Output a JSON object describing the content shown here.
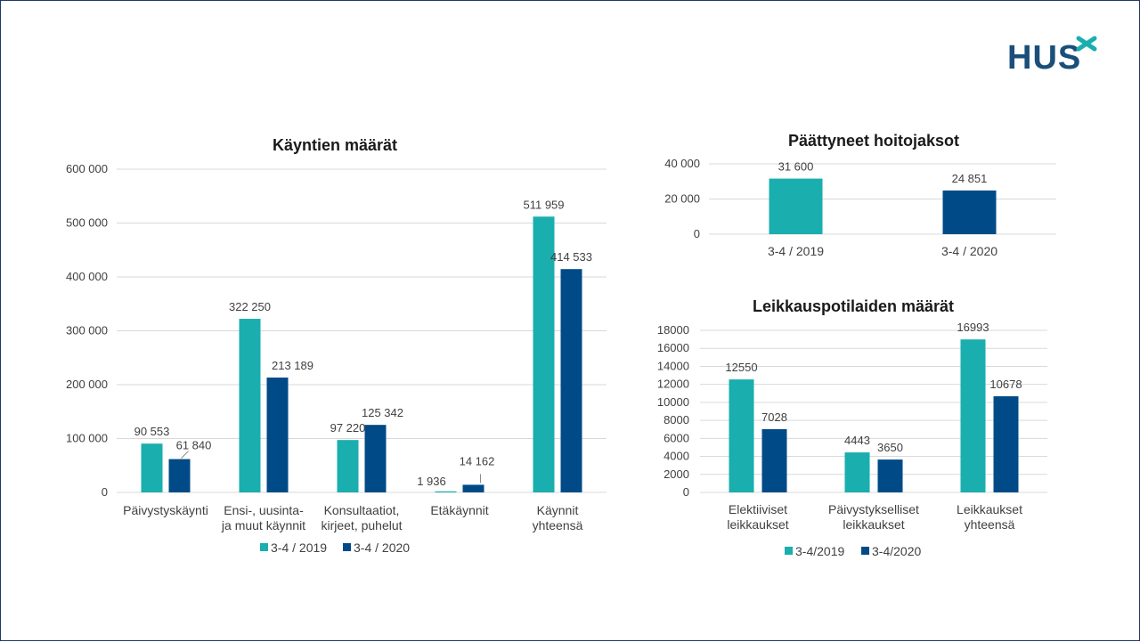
{
  "logo": {
    "text": "HUS"
  },
  "colors": {
    "series_2019": "#1aaeae",
    "series_2020": "#004b87",
    "grid": "#d9d9d9",
    "text": "#404040",
    "logo": "#1a4f7a",
    "logo_accent": "#1aaeae"
  },
  "chart_data": [
    {
      "id": "visits",
      "type": "bar",
      "title": "Käyntien määrät",
      "categories": [
        [
          "Päivystyskäynti"
        ],
        [
          "Ensi-, uusinta-",
          "ja muut käynnit"
        ],
        [
          "Konsultaatiot,",
          "kirjeet, puhelut"
        ],
        [
          "Etäkäynnit"
        ],
        [
          "Käynnit",
          "yhteensä"
        ]
      ],
      "series": [
        {
          "name": "3-4 / 2019",
          "values": [
            90553,
            322250,
            97220,
            1936,
            511959
          ],
          "labels": [
            "90 553",
            "322 250",
            "97 220",
            "1 936",
            "511 959"
          ]
        },
        {
          "name": "3-4 / 2020",
          "values": [
            61840,
            213189,
            125342,
            14162,
            414533
          ],
          "labels": [
            "61 840",
            "213 189",
            "125 342",
            "14 162",
            "414 533"
          ]
        }
      ],
      "ylim": [
        0,
        600000
      ],
      "yticks": [
        0,
        100000,
        200000,
        300000,
        400000,
        500000,
        600000
      ],
      "ytick_labels": [
        "0",
        "100 000",
        "200 000",
        "300 000",
        "400 000",
        "500 000",
        "600 000"
      ],
      "grid": true,
      "legend": "bottom"
    },
    {
      "id": "episodes",
      "type": "bar",
      "title": "Päättyneet hoitojaksot",
      "categories": [
        [
          "3-4 / 2019"
        ],
        [
          "3-4 / 2020"
        ]
      ],
      "values": [
        31600,
        24851
      ],
      "labels": [
        "31 600",
        "24 851"
      ],
      "ylim": [
        0,
        40000
      ],
      "yticks": [
        0,
        20000,
        40000
      ],
      "ytick_labels": [
        "0",
        "20 000",
        "40 000"
      ],
      "grid": true,
      "legend": "none"
    },
    {
      "id": "surgery",
      "type": "bar",
      "title": "Leikkauspotilaiden määrät",
      "categories": [
        [
          "Elektiiviset",
          "leikkaukset"
        ],
        [
          "Päivystykselliset",
          "leikkaukset"
        ],
        [
          "Leikkaukset",
          "yhteensä"
        ]
      ],
      "series": [
        {
          "name": "3-4/2019",
          "values": [
            12550,
            4443,
            16993
          ],
          "labels": [
            "12550",
            "4443",
            "16993"
          ]
        },
        {
          "name": "3-4/2020",
          "values": [
            7028,
            3650,
            10678
          ],
          "labels": [
            "7028",
            "3650",
            "10678"
          ]
        }
      ],
      "ylim": [
        0,
        18000
      ],
      "yticks": [
        0,
        2000,
        4000,
        6000,
        8000,
        10000,
        12000,
        14000,
        16000,
        18000
      ],
      "ytick_labels": [
        "0",
        "2000",
        "4000",
        "6000",
        "8000",
        "10000",
        "12000",
        "14000",
        "16000",
        "18000"
      ],
      "grid": true,
      "legend": "bottom"
    }
  ]
}
